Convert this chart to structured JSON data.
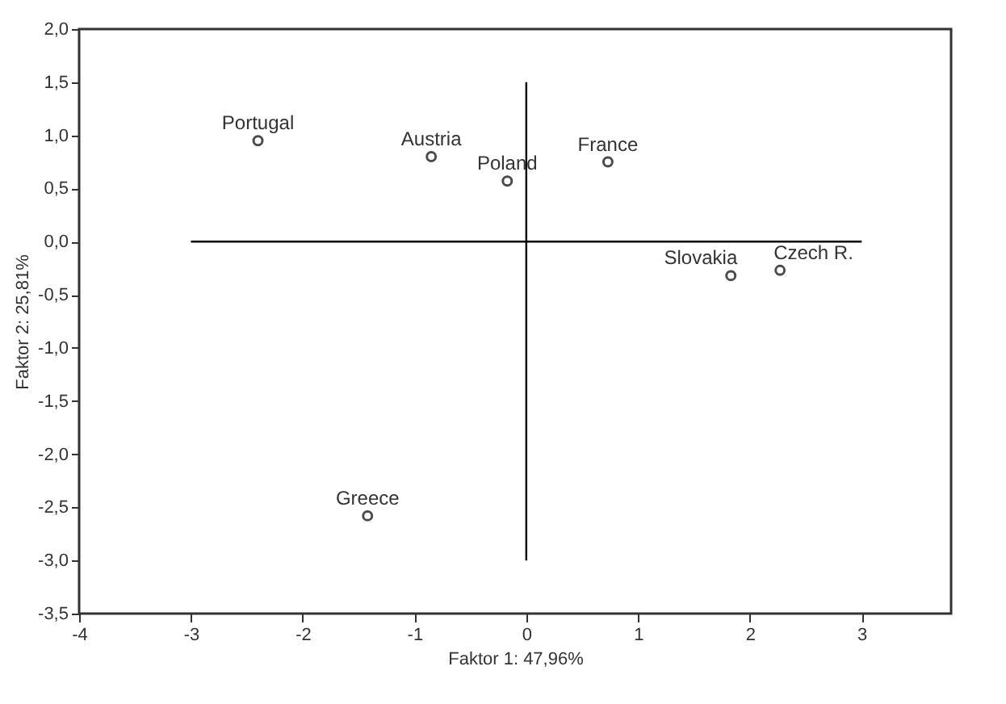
{
  "chart_data": {
    "type": "scatter",
    "xlabel": "Faktor 1: 47,96%",
    "ylabel": "Faktor 2: 25,81%",
    "xlim": [
      -4,
      3.8
    ],
    "ylim": [
      -3.5,
      2.0
    ],
    "xticks": [
      -4,
      -3,
      -2,
      -1,
      0,
      1,
      2,
      3
    ],
    "yticks": [
      {
        "value": -3.5,
        "label": "-3,5"
      },
      {
        "value": -3,
        "label": "-3,0"
      },
      {
        "value": -2.5,
        "label": "-2,5"
      },
      {
        "value": -2,
        "label": "-2,0"
      },
      {
        "value": -1.5,
        "label": "-1,5"
      },
      {
        "value": -1,
        "label": "-1,0"
      },
      {
        "value": -0.5,
        "label": "-0,5"
      },
      {
        "value": 0,
        "label": "0,0"
      },
      {
        "value": 0.5,
        "label": "0,5"
      },
      {
        "value": 1,
        "label": "1,0"
      },
      {
        "value": 1.5,
        "label": "1,5"
      },
      {
        "value": 2,
        "label": "2,0"
      }
    ],
    "grid": false,
    "series": [
      {
        "type": "scatter",
        "marker": "circle",
        "color": "#000000",
        "x": [
          -2.4,
          -0.85,
          -0.17,
          0.73,
          1.83,
          2.27,
          -1.42
        ],
        "values": [
          0.95,
          0.8,
          0.57,
          0.75,
          -0.32,
          -0.27,
          -2.58
        ]
      },
      {
        "type": "line",
        "color": "#000000",
        "x": [
          -3,
          3
        ],
        "values": [
          0,
          0
        ]
      },
      {
        "type": "line",
        "color": "#000000",
        "x": [
          0,
          0
        ],
        "values": [
          -3,
          1.5
        ]
      }
    ],
    "annotations": [
      {
        "text": "Portugal",
        "x": -2.4,
        "y": 0.95
      },
      {
        "text": "Austria",
        "x": -0.85,
        "y": 0.8
      },
      {
        "text": "Poland",
        "x": -0.17,
        "y": 0.57
      },
      {
        "text": "France",
        "x": 0.73,
        "y": 0.75
      },
      {
        "text": "Slovakia",
        "x": 1.83,
        "y": -0.32
      },
      {
        "text": "Czech R.",
        "x": 2.27,
        "y": -0.27
      },
      {
        "text": "Greece",
        "x": -1.42,
        "y": -2.58
      }
    ]
  }
}
